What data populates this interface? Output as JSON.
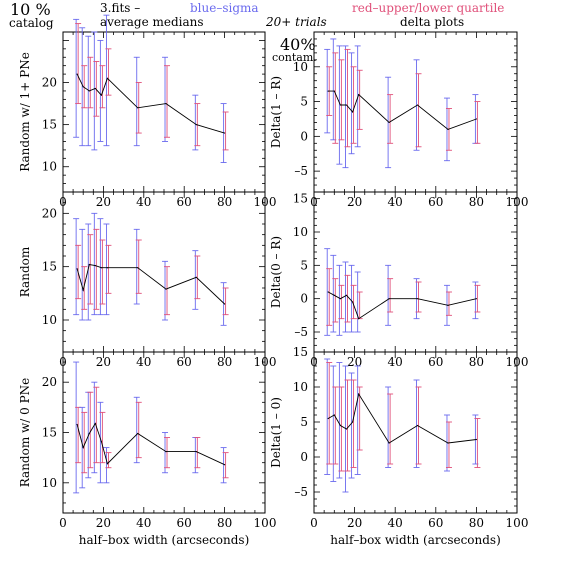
{
  "header": {
    "pct": "10 %",
    "catalog": "catalog",
    "fits": "3.fits  –",
    "avg_medians": "average medians",
    "blue_sigma": "blue–sigma",
    "red_quartile": "red–upper/lower quartile",
    "trials": "20+ trials",
    "delta_plots": "delta plots",
    "contam_pct": "40%",
    "contam_label": "contam."
  },
  "colors": {
    "sigma": "#6a6aee",
    "quartile": "#e0507a",
    "line": "#000000",
    "axis": "#000000"
  },
  "chart_data": [
    {
      "type": "line",
      "panel": "top-left",
      "ylabel": "Random w/ 1+ PNe",
      "xlabel": "",
      "xlim": [
        0,
        100
      ],
      "ylim": [
        7,
        26
      ],
      "xticks": [
        "0",
        "20",
        "40",
        "60",
        "80",
        "100"
      ],
      "yticks": [
        "10",
        "15",
        "20"
      ],
      "ytick_values": [
        10,
        15,
        20
      ],
      "x": [
        7,
        10,
        13,
        16,
        19,
        22,
        37,
        51,
        66,
        80
      ],
      "y": [
        21,
        19.5,
        19,
        19.3,
        18.5,
        20.5,
        17,
        17.5,
        15,
        14
      ],
      "sigma": [
        [
          13.5,
          27.5
        ],
        [
          12.5,
          26.5
        ],
        [
          12.5,
          25.5
        ],
        [
          12,
          26
        ],
        [
          13,
          25
        ],
        [
          12.5,
          28
        ],
        [
          12.5,
          23
        ],
        [
          13,
          23
        ],
        [
          12,
          18.5
        ],
        [
          10.5,
          17.5
        ]
      ],
      "quartile": [
        [
          17.5,
          27
        ],
        [
          17,
          22
        ],
        [
          17,
          23
        ],
        [
          16,
          22.5
        ],
        [
          17,
          22
        ],
        [
          18.5,
          24
        ],
        [
          14,
          20
        ],
        [
          13.5,
          22
        ],
        [
          12.5,
          17.5
        ],
        [
          12,
          16.5
        ]
      ]
    },
    {
      "type": "line",
      "panel": "top-right",
      "ylabel": "Delta(1 – R)",
      "xlabel": "",
      "xlim": [
        0,
        100
      ],
      "ylim": [
        -8,
        15
      ],
      "xticks": [
        "0",
        "20",
        "40",
        "60",
        "80",
        "100"
      ],
      "yticks": [
        "–5",
        "0",
        "5",
        "10"
      ],
      "ytick_values": [
        -5,
        0,
        5,
        10
      ],
      "x": [
        7,
        10,
        13,
        16,
        19,
        22,
        37,
        51,
        66,
        80
      ],
      "y": [
        6.5,
        6.5,
        4.5,
        4.5,
        3.5,
        6,
        2,
        4.5,
        1,
        2.5
      ],
      "sigma": [
        [
          0.5,
          12.5
        ],
        [
          -0.5,
          14
        ],
        [
          -4,
          13
        ],
        [
          -4.5,
          13
        ],
        [
          -2.5,
          12
        ],
        [
          -1.5,
          13
        ],
        [
          -4.5,
          8.5
        ],
        [
          -2,
          11
        ],
        [
          -3.5,
          5.5
        ],
        [
          -1,
          6
        ]
      ],
      "quartile": [
        [
          3,
          10
        ],
        [
          -1,
          12
        ],
        [
          -0.5,
          11
        ],
        [
          -1.5,
          12.5
        ],
        [
          -1,
          10
        ],
        [
          1,
          9.5
        ],
        [
          -1,
          6
        ],
        [
          -1.5,
          9
        ],
        [
          -2,
          4
        ],
        [
          -1,
          5
        ]
      ]
    },
    {
      "type": "line",
      "panel": "middle-left",
      "ylabel": "Random",
      "xlabel": "",
      "xlim": [
        0,
        100
      ],
      "ylim": [
        7,
        22
      ],
      "xticks": [
        "0",
        "20",
        "40",
        "60",
        "80",
        "100"
      ],
      "yticks": [
        "10",
        "15",
        "20"
      ],
      "ytick_values": [
        10,
        15,
        20
      ],
      "x": [
        7,
        10,
        13,
        16,
        19,
        22,
        37,
        51,
        66,
        80
      ],
      "y": [
        14.8,
        12.8,
        15.2,
        15.1,
        14.9,
        14.9,
        14.9,
        12.9,
        14,
        11.5
      ],
      "sigma": [
        [
          10.5,
          19.5
        ],
        [
          10,
          18.5
        ],
        [
          10,
          19
        ],
        [
          10.5,
          20
        ],
        [
          10.5,
          19.5
        ],
        [
          10.5,
          19
        ],
        [
          11.5,
          18.5
        ],
        [
          10,
          15.5
        ],
        [
          11,
          16.5
        ],
        [
          9.5,
          13.5
        ]
      ],
      "quartile": [
        [
          12,
          17
        ],
        [
          11,
          15
        ],
        [
          11.5,
          18
        ],
        [
          11,
          18.5
        ],
        [
          11.5,
          17.5
        ],
        [
          12.5,
          17
        ],
        [
          12.5,
          17.5
        ],
        [
          10.5,
          15
        ],
        [
          12,
          16
        ],
        [
          10.5,
          13
        ]
      ]
    },
    {
      "type": "line",
      "panel": "middle-right",
      "ylabel": "Delta(0 – R)",
      "xlabel": "",
      "xlim": [
        0,
        100
      ],
      "ylim": [
        -8,
        16
      ],
      "xticks": [
        "0",
        "20",
        "40",
        "60",
        "80",
        "100"
      ],
      "yticks": [
        "–5",
        "0",
        "5",
        "10",
        "15"
      ],
      "ytick_values": [
        -5,
        0,
        5,
        10,
        15
      ],
      "x": [
        7,
        10,
        13,
        16,
        19,
        22,
        37,
        51,
        66,
        80
      ],
      "y": [
        1,
        0.5,
        0,
        0.5,
        -0.5,
        -3,
        0,
        0,
        -1,
        0
      ],
      "sigma": [
        [
          -5.5,
          7.5
        ],
        [
          -5,
          6.5
        ],
        [
          -5.5,
          5
        ],
        [
          -5,
          5.5
        ],
        [
          -5,
          5
        ],
        [
          -5,
          4
        ],
        [
          -4,
          5
        ],
        [
          -3,
          3
        ],
        [
          -4,
          2
        ],
        [
          -3,
          2.5
        ]
      ],
      "quartile": [
        [
          -4,
          4.5
        ],
        [
          -3.5,
          3
        ],
        [
          -3,
          2
        ],
        [
          -3.5,
          3.5
        ],
        [
          -3,
          2
        ],
        [
          -3,
          1
        ],
        [
          -2,
          3
        ],
        [
          -2,
          2.5
        ],
        [
          -2.5,
          1
        ],
        [
          -2,
          2
        ]
      ]
    },
    {
      "type": "line",
      "panel": "bottom-left",
      "ylabel": "Random w/ 0 PNe",
      "xlabel": "half–box width (arcseconds)",
      "xlim": [
        0,
        100
      ],
      "ylim": [
        7,
        23
      ],
      "xticks": [
        "0",
        "20",
        "40",
        "60",
        "80",
        "100"
      ],
      "yticks": [
        "10",
        "15",
        "20"
      ],
      "ytick_values": [
        10,
        15,
        20
      ],
      "x": [
        7,
        10,
        13,
        16,
        19,
        22,
        37,
        51,
        66,
        80
      ],
      "y": [
        15.8,
        13.5,
        14.9,
        15.9,
        14.1,
        11.9,
        14.9,
        13.1,
        13.1,
        11.8
      ],
      "sigma": [
        [
          9,
          22
        ],
        [
          9.5,
          17.5
        ],
        [
          10.5,
          19
        ],
        [
          11,
          20
        ],
        [
          10,
          18
        ],
        [
          10,
          13.5
        ],
        [
          12,
          18.5
        ],
        [
          11,
          15
        ],
        [
          11,
          14.5
        ],
        [
          10,
          13.5
        ]
      ],
      "quartile": [
        [
          12,
          17.5
        ],
        [
          11,
          17
        ],
        [
          11.5,
          19
        ],
        [
          12,
          19.5
        ],
        [
          12,
          17
        ],
        [
          11.5,
          13
        ],
        [
          12.5,
          18
        ],
        [
          11.5,
          14.5
        ],
        [
          11.5,
          14.5
        ],
        [
          10.5,
          13
        ]
      ]
    },
    {
      "type": "line",
      "panel": "bottom-right",
      "ylabel": "Delta(1 – 0)",
      "xlabel": "half–box width (arcseconds)",
      "xlim": [
        0,
        100
      ],
      "ylim": [
        -8,
        15
      ],
      "xticks": [
        "0",
        "20",
        "40",
        "60",
        "80",
        "100"
      ],
      "yticks": [
        "–5",
        "0",
        "5",
        "10",
        "15"
      ],
      "ytick_values": [
        -5,
        0,
        5,
        10,
        15
      ],
      "x": [
        7,
        10,
        13,
        16,
        19,
        22,
        37,
        51,
        66,
        80
      ],
      "y": [
        5.5,
        6,
        4.5,
        4,
        5,
        9,
        2,
        4.5,
        2,
        2.5
      ],
      "sigma": [
        [
          -2.5,
          14
        ],
        [
          -3.5,
          13
        ],
        [
          -3,
          13.5
        ],
        [
          -5,
          13
        ],
        [
          -3,
          12
        ],
        [
          -2.5,
          13
        ],
        [
          -1.5,
          10
        ],
        [
          -1.5,
          11
        ],
        [
          -2,
          6
        ],
        [
          -1,
          6
        ]
      ],
      "quartile": [
        [
          -1,
          13.5
        ],
        [
          -1,
          10
        ],
        [
          -2,
          10
        ],
        [
          -2,
          11
        ],
        [
          -1.5,
          11
        ],
        [
          1,
          10
        ],
        [
          -1,
          9
        ],
        [
          -1,
          10
        ],
        [
          -1.5,
          5
        ],
        [
          -1.5,
          5.5
        ]
      ]
    }
  ]
}
